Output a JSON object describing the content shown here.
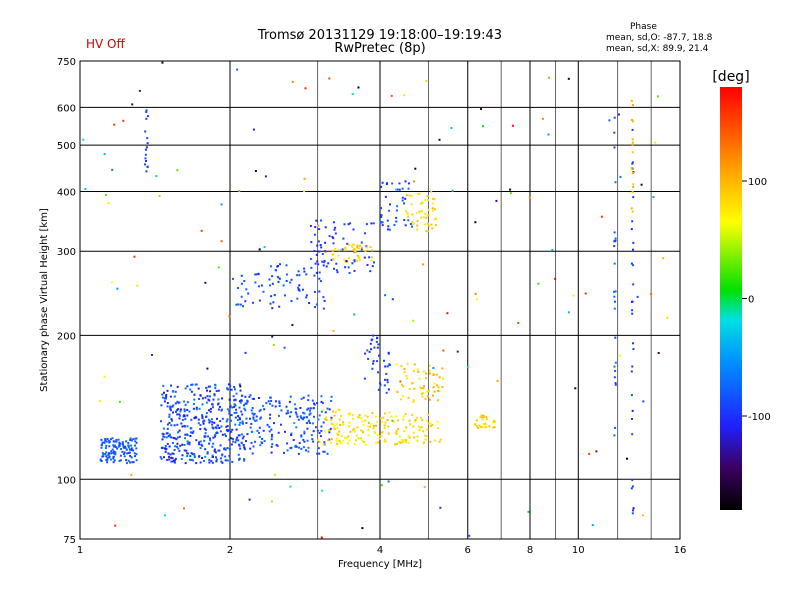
{
  "header": {
    "title_line1": "Tromsø 20131129 19:18:00–19:19:43",
    "title_line2": "RwPretec (8p)",
    "hv_status": "HV Off",
    "hv_color": "#cc0000"
  },
  "phase_box": {
    "title": "Phase",
    "o_line": "mean, sd,O: -87.7, 18.8",
    "x_line": "mean, sd,X:  89.9, 21.4"
  },
  "chart_data": {
    "type": "scatter",
    "xlabel": "Frequency [MHz]",
    "ylabel": "Stationary phase Virtual Height [km]",
    "xscale": "log",
    "yscale": "log",
    "xlim": [
      1,
      16
    ],
    "ylim": [
      75,
      750
    ],
    "x_ticks": [
      1,
      2,
      4,
      6,
      8,
      10,
      16
    ],
    "y_ticks": [
      75,
      100,
      200,
      300,
      400,
      500,
      600,
      750
    ],
    "grid": true,
    "colorbar": {
      "label": "[deg]",
      "range": [
        -180,
        180
      ],
      "ticks": [
        -100,
        0,
        100
      ]
    },
    "point_groups": [
      {
        "x": [
          1.1,
          1.3
        ],
        "y": [
          108,
          122
        ],
        "phase": [
          -95,
          -70
        ],
        "n": 120
      },
      {
        "x": [
          1.45,
          2.15
        ],
        "y": [
          108,
          158
        ],
        "phase": [
          -120,
          -60
        ],
        "n": 420
      },
      {
        "x": [
          2.1,
          3.2
        ],
        "y": [
          112,
          150
        ],
        "phase": [
          -110,
          -60
        ],
        "n": 200
      },
      {
        "x": [
          3.0,
          3.9
        ],
        "y": [
          118,
          140
        ],
        "phase": [
          60,
          100
        ],
        "n": 90
      },
      {
        "x": [
          3.9,
          5.3
        ],
        "y": [
          118,
          138
        ],
        "phase": [
          60,
          100
        ],
        "n": 90
      },
      {
        "x": [
          4.3,
          5.4
        ],
        "y": [
          145,
          175
        ],
        "phase": [
          70,
          110
        ],
        "n": 60
      },
      {
        "x": [
          3.7,
          4.2
        ],
        "y": [
          150,
          200
        ],
        "phase": [
          -110,
          -80
        ],
        "n": 40
      },
      {
        "x": [
          6.2,
          6.8
        ],
        "y": [
          128,
          136
        ],
        "phase": [
          70,
          100
        ],
        "n": 30
      },
      {
        "x": [
          2.0,
          2.5
        ],
        "y": [
          230,
          270
        ],
        "phase": [
          -100,
          -70
        ],
        "n": 30
      },
      {
        "x": [
          2.4,
          3.1
        ],
        "y": [
          225,
          285
        ],
        "phase": [
          -110,
          -70
        ],
        "n": 50
      },
      {
        "x": [
          2.9,
          3.9
        ],
        "y": [
          270,
          350
        ],
        "phase": [
          -110,
          -80
        ],
        "n": 70
      },
      {
        "x": [
          3.2,
          3.9
        ],
        "y": [
          285,
          310
        ],
        "phase": [
          70,
          100
        ],
        "n": 40
      },
      {
        "x": [
          4.0,
          4.7
        ],
        "y": [
          330,
          420
        ],
        "phase": [
          -110,
          -70
        ],
        "n": 40
      },
      {
        "x": [
          4.5,
          5.2
        ],
        "y": [
          330,
          400
        ],
        "phase": [
          70,
          100
        ],
        "n": 50
      },
      {
        "x": [
          1.35,
          1.37
        ],
        "y": [
          430,
          630
        ],
        "phase": [
          -100,
          -80
        ],
        "n": 16
      },
      {
        "x": [
          11.8,
          11.9
        ],
        "y": [
          110,
          620
        ],
        "phase": [
          -100,
          -60
        ],
        "n": 25
      },
      {
        "x": [
          12.8,
          12.9
        ],
        "y": [
          80,
          560
        ],
        "phase": [
          -110,
          -80
        ],
        "n": 30
      },
      {
        "x": [
          12.8,
          12.9
        ],
        "y": [
          340,
          620
        ],
        "phase": [
          90,
          110
        ],
        "n": 15
      },
      {
        "x": [
          1.0,
          16.0
        ],
        "y": [
          75,
          750
        ],
        "phase": [
          -180,
          180
        ],
        "n": 140
      }
    ]
  }
}
